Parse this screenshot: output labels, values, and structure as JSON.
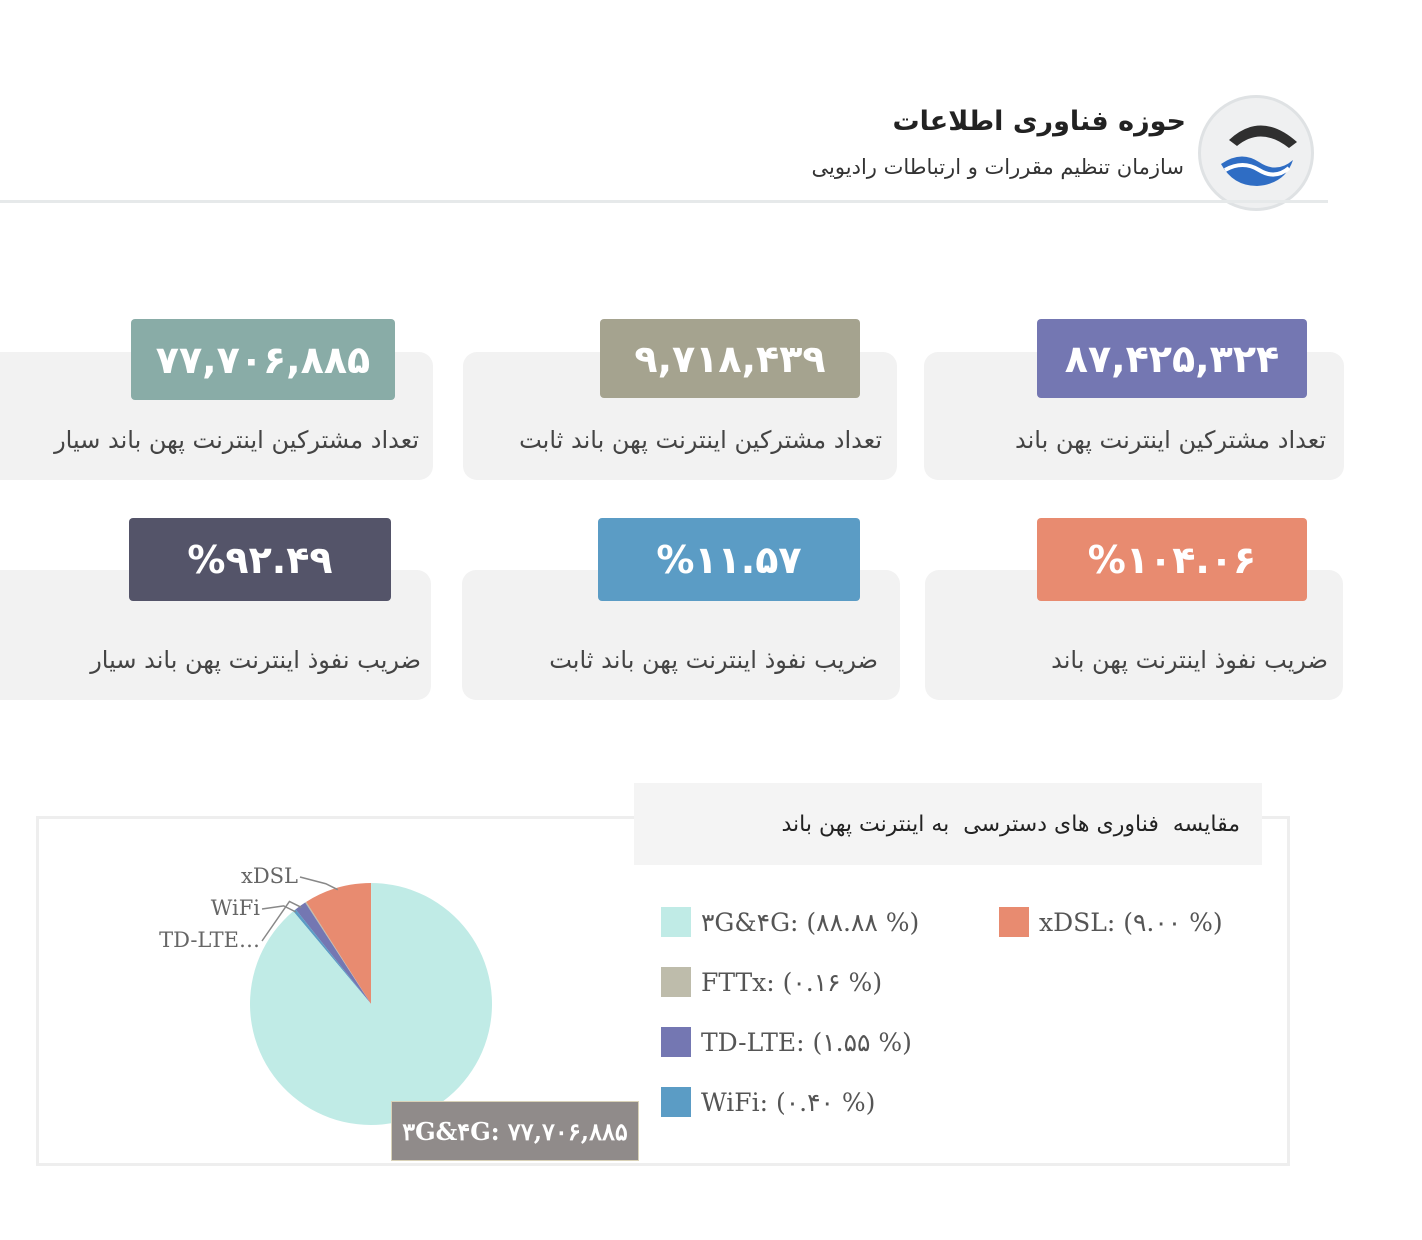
{
  "header": {
    "title": "حوزه فناوری اطلاعات",
    "subtitle": "سازمان تنظیم مقررات و ارتباطات رادیویی"
  },
  "stats": [
    {
      "value": "۸۷,۴۲۵,۳۲۴",
      "label": "تعداد مشترکین اینترنت پهن باند",
      "color": "#7477b2"
    },
    {
      "value": "۹,۷۱۸,۴۳۹",
      "label": "تعداد مشترکین اینترنت پهن باند ثابت",
      "color": "#a5a38f"
    },
    {
      "value": "۷۷,۷۰۶,۸۸۵",
      "label": "تعداد مشترکین اینترنت پهن باند سیار",
      "color": "#89aca7"
    },
    {
      "value": "%۱۰۴.۰۶",
      "label": "ضریب نفوذ اینترنت پهن باند",
      "color": "#e88b70"
    },
    {
      "value": "%۱۱.۵۷",
      "label": "ضریب نفوذ اینترنت پهن باند ثابت",
      "color": "#5b9cc5"
    },
    {
      "value": "%۹۲.۴۹",
      "label": "ضریب نفوذ اینترنت پهن باند سیار",
      "color": "#545469"
    }
  ],
  "chart_title": "مقایسه  فناوری های دسترسی  به اینترنت پهن باند",
  "tooltip_text": "۳G&۴G: ۷۷,۷۰۶,۸۸۵",
  "chart_data": {
    "type": "pie",
    "title": "مقایسه  فناوری های دسترسی  به اینترنت پهن باند",
    "series": [
      {
        "name": "۳G&۴G",
        "percent": 88.88,
        "label": "۳G&۴G: (۸۸.۸۸ %)",
        "color": "#c0ebe6"
      },
      {
        "name": "xDSL",
        "percent": 9.0,
        "label": "xDSL: (۹.۰۰ %)",
        "color": "#e88b70"
      },
      {
        "name": "FTTx",
        "percent": 0.16,
        "label": "FTTx: (۰.۱۶ %)",
        "color": "#bebcab"
      },
      {
        "name": "TD-LTE",
        "percent": 1.55,
        "label": "TD-LTE: (۱.۵۵ %)",
        "color": "#7477b2"
      },
      {
        "name": "WiFi",
        "percent": 0.4,
        "label": "WiFi: (۰.۴۰ %)",
        "color": "#5b9cc5"
      }
    ],
    "slice_callouts": [
      "xDSL",
      "WiFi",
      "TD-LTE…"
    ],
    "legend": "right"
  }
}
